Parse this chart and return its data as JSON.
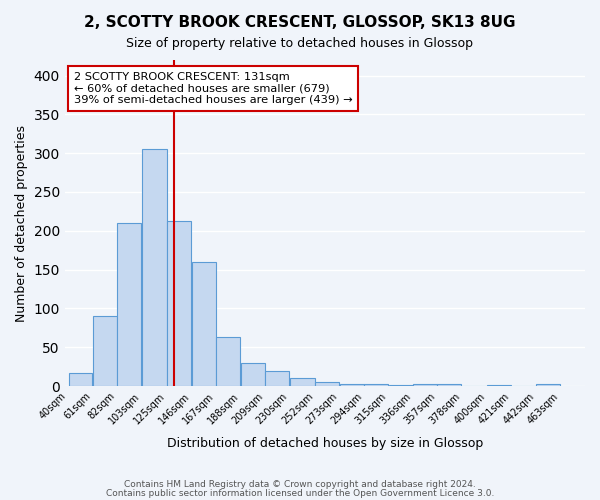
{
  "title": "2, SCOTTY BROOK CRESCENT, GLOSSOP, SK13 8UG",
  "subtitle": "Size of property relative to detached houses in Glossop",
  "xlabel": "Distribution of detached houses by size in Glossop",
  "ylabel": "Number of detached properties",
  "bar_heights": [
    17,
    90,
    210,
    305,
    213,
    160,
    63,
    30,
    20,
    10,
    5,
    3,
    2,
    1,
    2,
    3,
    0,
    1,
    0,
    2
  ],
  "bin_edges": [
    40,
    61,
    82,
    103,
    125,
    146,
    167,
    188,
    209,
    230,
    252,
    273,
    294,
    315,
    336,
    357,
    378,
    400,
    421,
    442,
    463
  ],
  "bin_labels": [
    "40sqm",
    "61sqm",
    "82sqm",
    "103sqm",
    "125sqm",
    "146sqm",
    "167sqm",
    "188sqm",
    "209sqm",
    "230sqm",
    "252sqm",
    "273sqm",
    "294sqm",
    "315sqm",
    "336sqm",
    "357sqm",
    "378sqm",
    "400sqm",
    "421sqm",
    "442sqm",
    "463sqm"
  ],
  "bar_color": "#c5d8f0",
  "bar_edgecolor": "#5b9bd5",
  "vline_x": 131,
  "vline_color": "#cc0000",
  "ylim": [
    0,
    420
  ],
  "annotation_title": "2 SCOTTY BROOK CRESCENT: 131sqm",
  "annotation_line1": "← 60% of detached houses are smaller (679)",
  "annotation_line2": "39% of semi-detached houses are larger (439) →",
  "annotation_box_color": "#ffffff",
  "annotation_box_edgecolor": "#cc0000",
  "footer1": "Contains HM Land Registry data © Crown copyright and database right 2024.",
  "footer2": "Contains public sector information licensed under the Open Government Licence 3.0.",
  "background_color": "#f0f4fa"
}
